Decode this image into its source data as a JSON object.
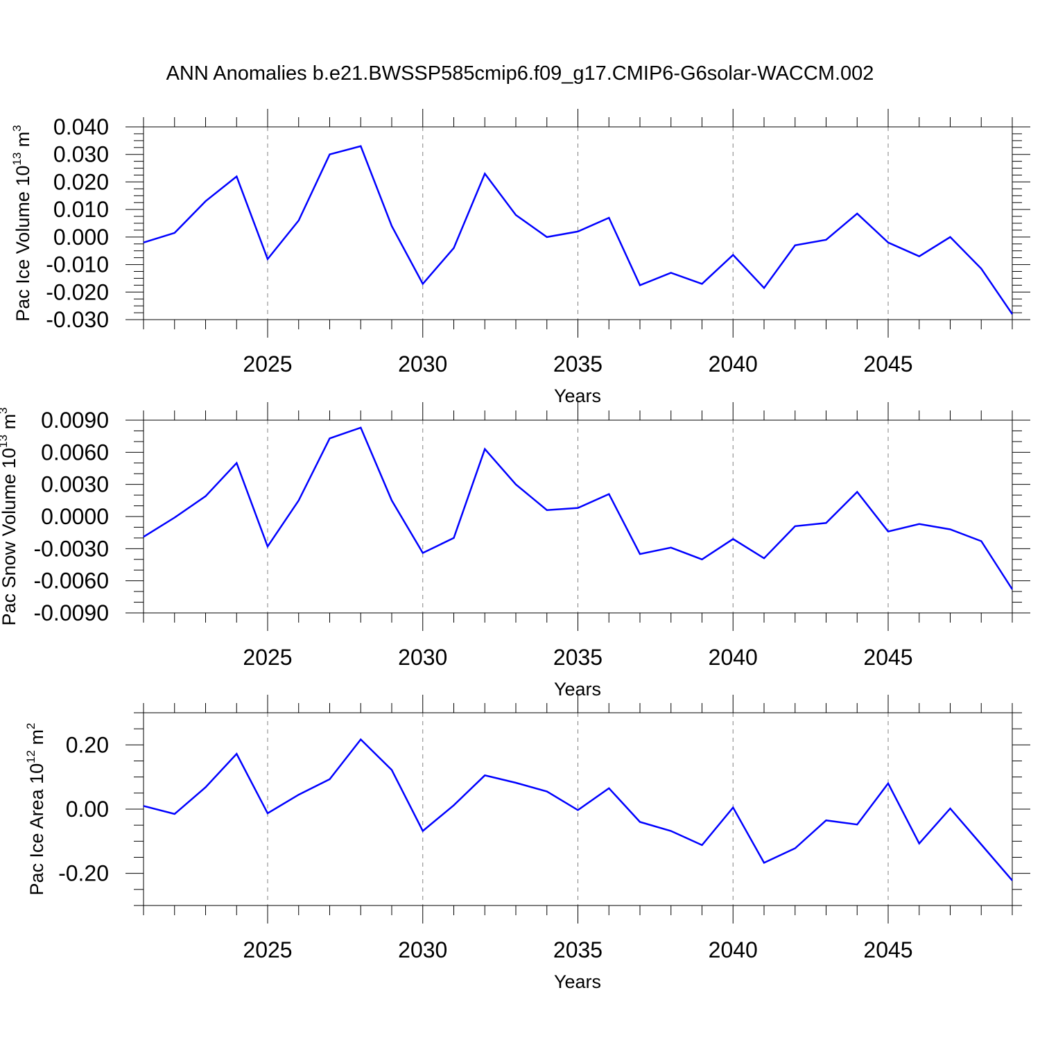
{
  "title": "ANN Anomalies b.e21.BWSSP585cmip6.f09_g17.CMIP6-G6solar-WACCM.002",
  "colors": {
    "line": "#0000ff",
    "axis": "#000000",
    "grid": "#808080"
  },
  "chart_data": [
    {
      "type": "line",
      "ylabel": "Pac Ice Volume 10",
      "ylabel_exp": "13",
      "ylabel_unit": " m",
      "ylabel_unit_exp": "3",
      "xlabel": "Years",
      "xlim": [
        2021,
        2049
      ],
      "ylim": [
        -0.03,
        0.04
      ],
      "yticks": [
        -0.03,
        -0.02,
        -0.01,
        0.0,
        0.01,
        0.02,
        0.03,
        0.04
      ],
      "ytick_labels": [
        "-0.030",
        "-0.020",
        "-0.010",
        "0.000",
        "0.010",
        "0.020",
        "0.030",
        "0.040"
      ],
      "yminor_step": 0.0025,
      "xticks": [
        2025,
        2030,
        2035,
        2040,
        2045
      ],
      "xtick_labels": [
        "2025",
        "2030",
        "2035",
        "2040",
        "2045"
      ],
      "x": [
        2021,
        2022,
        2023,
        2024,
        2025,
        2026,
        2027,
        2028,
        2029,
        2030,
        2031,
        2032,
        2033,
        2034,
        2035,
        2036,
        2037,
        2038,
        2039,
        2040,
        2041,
        2042,
        2043,
        2044,
        2045,
        2046,
        2047,
        2048,
        2049
      ],
      "values": [
        -0.002,
        0.0015,
        0.013,
        0.022,
        -0.008,
        0.006,
        0.03,
        0.033,
        0.004,
        -0.017,
        -0.004,
        0.023,
        0.008,
        0.0,
        0.002,
        0.007,
        -0.0175,
        -0.013,
        -0.017,
        -0.0065,
        -0.0185,
        -0.003,
        -0.001,
        0.0085,
        -0.002,
        -0.007,
        0.0,
        -0.0115,
        -0.028
      ]
    },
    {
      "type": "line",
      "ylabel": "Pac Snow Volume 10",
      "ylabel_exp": "13",
      "ylabel_unit": " m",
      "ylabel_unit_exp": "3",
      "xlabel": "Years",
      "xlim": [
        2021,
        2049
      ],
      "ylim": [
        -0.009,
        0.009
      ],
      "yticks": [
        -0.009,
        -0.006,
        -0.003,
        0.0,
        0.003,
        0.006,
        0.009
      ],
      "ytick_labels": [
        "-0.0090",
        "-0.0060",
        "-0.0030",
        "0.0000",
        "0.0030",
        "0.0060",
        "0.0090"
      ],
      "yminor_step": 0.001,
      "xticks": [
        2025,
        2030,
        2035,
        2040,
        2045
      ],
      "xtick_labels": [
        "2025",
        "2030",
        "2035",
        "2040",
        "2045"
      ],
      "x": [
        2021,
        2022,
        2023,
        2024,
        2025,
        2026,
        2027,
        2028,
        2029,
        2030,
        2031,
        2032,
        2033,
        2034,
        2035,
        2036,
        2037,
        2038,
        2039,
        2040,
        2041,
        2042,
        2043,
        2044,
        2045,
        2046,
        2047,
        2048,
        2049
      ],
      "values": [
        -0.0019,
        -0.0001,
        0.0019,
        0.005,
        -0.0028,
        0.0015,
        0.0073,
        0.0083,
        0.0015,
        -0.0034,
        -0.002,
        0.0063,
        0.003,
        0.0006,
        0.0008,
        0.0021,
        -0.0035,
        -0.0029,
        -0.004,
        -0.0021,
        -0.0039,
        -0.0009,
        -0.0006,
        0.0023,
        -0.0014,
        -0.0007,
        -0.0012,
        -0.0023,
        -0.0068
      ]
    },
    {
      "type": "line",
      "ylabel": "Pac Ice Area 10",
      "ylabel_exp": "12",
      "ylabel_unit": " m",
      "ylabel_unit_exp": "2",
      "xlabel": "Years",
      "xlim": [
        2021,
        2049
      ],
      "ylim": [
        -0.3,
        0.3
      ],
      "yticks": [
        -0.2,
        0.0,
        0.2
      ],
      "ytick_labels": [
        "-0.20",
        "0.00",
        "0.20"
      ],
      "yminor_step": 0.05,
      "xticks": [
        2025,
        2030,
        2035,
        2040,
        2045
      ],
      "xtick_labels": [
        "2025",
        "2030",
        "2035",
        "2040",
        "2045"
      ],
      "x": [
        2021,
        2022,
        2023,
        2024,
        2025,
        2026,
        2027,
        2028,
        2029,
        2030,
        2031,
        2032,
        2033,
        2034,
        2035,
        2036,
        2037,
        2038,
        2039,
        2040,
        2041,
        2042,
        2043,
        2044,
        2045,
        2046,
        2047,
        2048,
        2049
      ],
      "values": [
        0.01,
        -0.015,
        0.068,
        0.172,
        -0.013,
        0.045,
        0.093,
        0.217,
        0.122,
        -0.068,
        0.012,
        0.105,
        0.082,
        0.055,
        -0.003,
        0.065,
        -0.04,
        -0.068,
        -0.112,
        0.005,
        -0.167,
        -0.122,
        -0.035,
        -0.048,
        0.08,
        -0.107,
        0.002,
        -0.11,
        -0.222
      ]
    }
  ]
}
